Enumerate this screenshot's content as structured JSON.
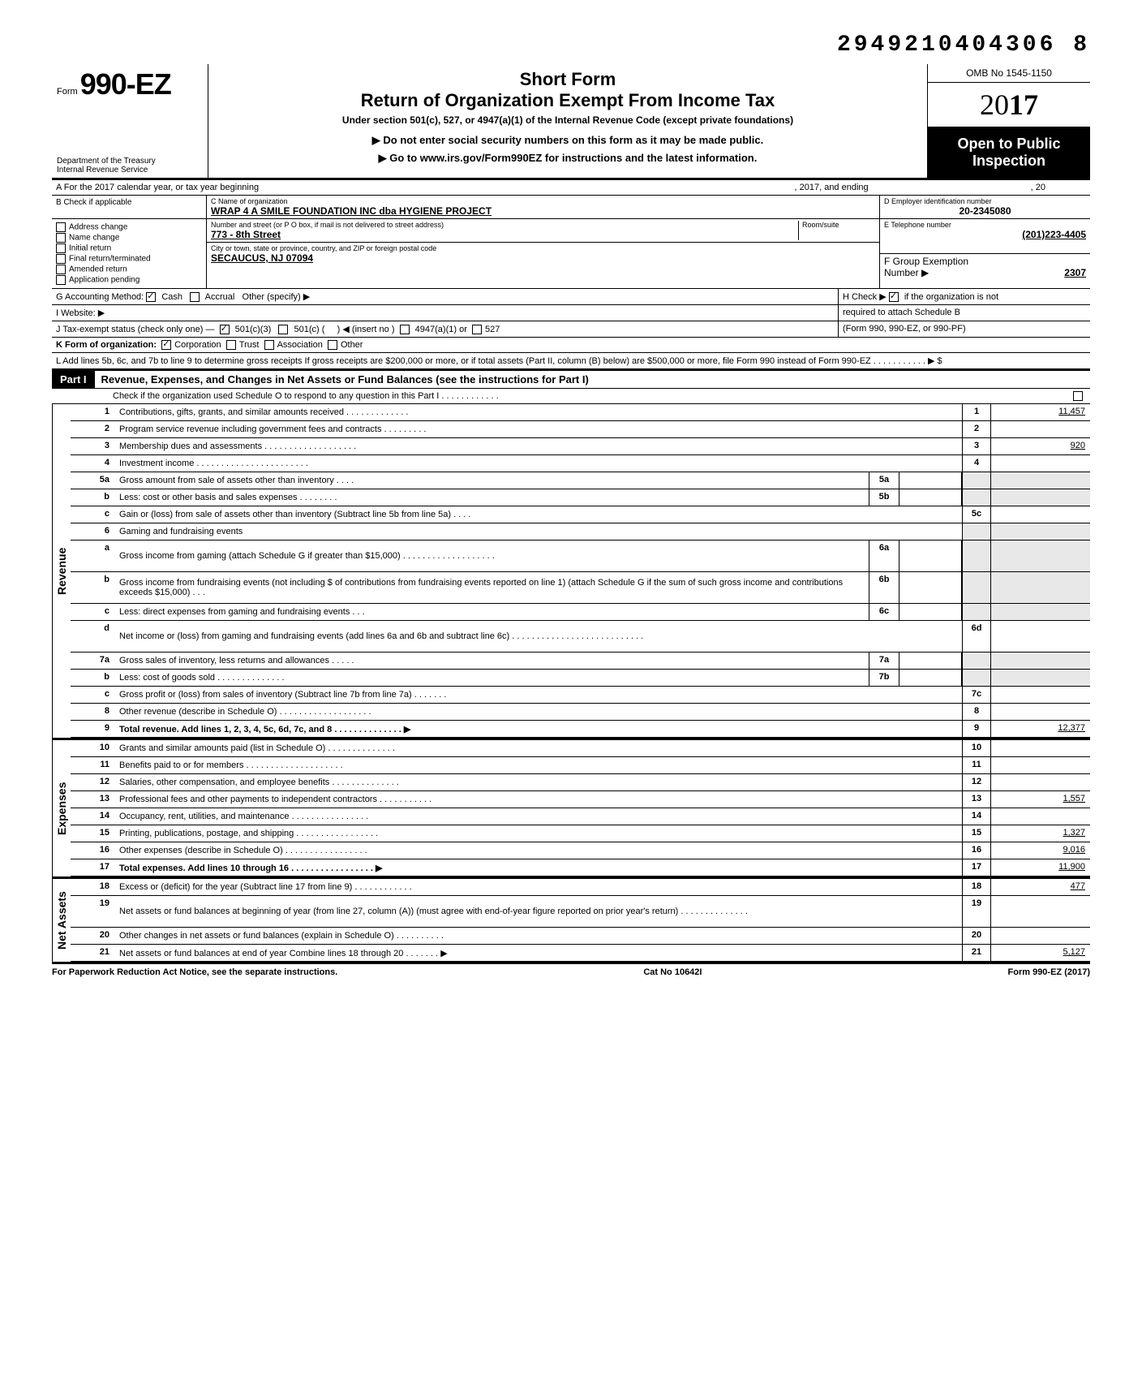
{
  "dln": "2949210404306  8",
  "omb": "OMB No 1545-1150",
  "form": {
    "prefix": "Form",
    "number": "990-EZ"
  },
  "year_display": {
    "static": "20",
    "bold": "17"
  },
  "dept": "Department of the Treasury\nInternal Revenue Service",
  "titles": {
    "short": "Short Form",
    "main": "Return of Organization Exempt From Income Tax",
    "under": "Under section 501(c), 527, or 4947(a)(1) of the Internal Revenue Code (except private foundations)",
    "warn": "Do not enter social security numbers on this form as it may be made public.",
    "goto": "Go to www.irs.gov/Form990EZ for instructions and the latest information.",
    "open1": "Open to Public",
    "open2": "Inspection"
  },
  "period": {
    "a_label": "A For the 2017 calendar year, or tax year beginning",
    "a_mid": ", 2017, and ending",
    "a_end": ", 20"
  },
  "section_b": {
    "label": "B  Check if applicable",
    "items": [
      "Address change",
      "Name change",
      "Initial return",
      "Final return/terminated",
      "Amended return",
      "Application pending"
    ]
  },
  "section_c": {
    "name_label": "C Name of organization",
    "name": "WRAP 4 A SMILE FOUNDATION INC  dba HYGIENE PROJECT",
    "addr_label": "Number and street (or P O  box, if mail is not delivered to street address)",
    "addr": "773 - 8th Street",
    "room_label": "Room/suite",
    "city_label": "City or town, state or province, country, and ZIP or foreign postal code",
    "city": "SECAUCUS, NJ 07094"
  },
  "section_d": {
    "label": "D Employer identification number",
    "value": "20-2345080"
  },
  "section_e": {
    "label": "E Telephone number",
    "value": "(201)223-4405"
  },
  "section_f": {
    "label": "F Group Exemption",
    "label2": "Number ▶",
    "value": "2307"
  },
  "section_g": {
    "label": "G  Accounting Method:",
    "cash": "Cash",
    "accrual": "Accrual",
    "other": "Other (specify) ▶"
  },
  "section_h": {
    "label": "H Check ▶",
    "text": "if the organization is not",
    "text2": "required to attach Schedule B",
    "text3": "(Form 990, 990-EZ, or 990-PF)"
  },
  "section_i": {
    "label": "I  Website: ▶"
  },
  "section_j": {
    "label": "J  Tax-exempt status (check only one) —",
    "opts": [
      "501(c)(3)",
      "501(c) (",
      ")  ◀ (insert no )",
      "4947(a)(1) or",
      "527"
    ]
  },
  "section_k": {
    "label": "K  Form of organization:",
    "opts": [
      "Corporation",
      "Trust",
      "Association",
      "Other"
    ]
  },
  "section_l": "L  Add lines 5b, 6c, and 7b to line 9 to determine gross receipts  If gross receipts are $200,000 or more, or if total assets (Part II, column (B) below) are $500,000 or more, file Form 990 instead of Form 990-EZ   .    .    .    .    .    .    .    .    .    .    .    ▶    $",
  "part1": {
    "label": "Part I",
    "title": "Revenue, Expenses, and Changes in Net Assets or Fund Balances (see the instructions for Part I)",
    "check": "Check if the organization used Schedule O to respond to any question in this Part I  .   .   .   .   .   .   .   .   .   .   .   ."
  },
  "verticals": {
    "revenue": "Revenue",
    "expenses": "Expenses",
    "netassets": "Net Assets"
  },
  "lines": [
    {
      "no": "1",
      "desc": "Contributions, gifts, grants, and similar amounts received .   .   .   .   .   .   .   .   .   .   .   .   .",
      "amt_no": "1",
      "amt": "11,457"
    },
    {
      "no": "2",
      "desc": "Program service revenue including government fees and contracts    .   .   .   .   .   .   .   .   .",
      "amt_no": "2",
      "amt": ""
    },
    {
      "no": "3",
      "desc": "Membership dues and assessments .   .   .   .   .   .   .   .   .   .   .   .   .   .   .   .   .   .   .",
      "amt_no": "3",
      "amt": "920"
    },
    {
      "no": "4",
      "desc": "Investment income   .   .   .   .   .   .   .   .   .   .   .   .   .   .   .   .   .   .   .   .   .   .   .",
      "amt_no": "4",
      "amt": ""
    },
    {
      "no": "5a",
      "desc": "Gross amount from sale of assets other than inventory    .   .   .   .",
      "sub_lbl": "5a",
      "sub_amt": ""
    },
    {
      "no": "b",
      "desc": "Less: cost or other basis and sales expenses .   .   .   .   .   .   .   .",
      "sub_lbl": "5b",
      "sub_amt": ""
    },
    {
      "no": "c",
      "desc": "Gain or (loss) from sale of assets other than inventory (Subtract line 5b from line 5a)  .   .   .   .",
      "amt_no": "5c",
      "amt": ""
    },
    {
      "no": "6",
      "desc": "Gaming and fundraising events",
      "shade_amt": true
    },
    {
      "no": "a",
      "desc": "Gross income from gaming (attach Schedule G if greater than $15,000) .   .   .   .   .   .   .   .   .   .   .   .   .   .   .   .   .   .   .",
      "sub_lbl": "6a",
      "sub_amt": "",
      "tall": true,
      "shade_amt": true
    },
    {
      "no": "b",
      "desc": "Gross income from fundraising events (not including  $                              of contributions from fundraising events reported on line 1) (attach Schedule G if the sum of such gross income and contributions exceeds $15,000)  .   .   .",
      "sub_lbl": "6b",
      "sub_amt": "",
      "tall": true,
      "shade_amt": true
    },
    {
      "no": "c",
      "desc": "Less: direct expenses from gaming and fundraising events    .   .   .",
      "sub_lbl": "6c",
      "sub_amt": "",
      "shade_amt": true
    },
    {
      "no": "d",
      "desc": "Net income or (loss) from gaming and fundraising events (add lines 6a and 6b and subtract line 6c)   .   .   .   .   .   .   .   .   .   .   .   .   .   .   .   .   .   .   .   .   .   .   .   .   .   .   .",
      "amt_no": "6d",
      "amt": "",
      "tall": true
    },
    {
      "no": "7a",
      "desc": "Gross sales of inventory, less returns and allowances   .   .   .   .   .",
      "sub_lbl": "7a",
      "sub_amt": ""
    },
    {
      "no": "b",
      "desc": "Less: cost of goods sold    .   .   .   .   .   .   .   .   .   .   .   .   .   .",
      "sub_lbl": "7b",
      "sub_amt": ""
    },
    {
      "no": "c",
      "desc": "Gross profit or (loss) from sales of inventory (Subtract line 7b from line 7a)   .   .   .   .   .   .   .",
      "amt_no": "7c",
      "amt": ""
    },
    {
      "no": "8",
      "desc": "Other revenue (describe in Schedule O) .   .   .   .   .   .   .   .   .   .   .   .   .   .   .   .   .   .   .",
      "amt_no": "8",
      "amt": ""
    },
    {
      "no": "9",
      "desc": "Total revenue. Add lines 1, 2, 3, 4, 5c, 6d, 7c, and 8   .   .   .   .   .   .   .   .   .   .   .   .   .   . ▶",
      "amt_no": "9",
      "amt": "12,377",
      "bold": true
    }
  ],
  "expense_lines": [
    {
      "no": "10",
      "desc": "Grants and similar amounts paid (list in Schedule O)   .   .   .   .   .   .   .   .   .   .   .   .   .   .",
      "amt_no": "10",
      "amt": ""
    },
    {
      "no": "11",
      "desc": "Benefits paid to or for members   .   .   .   .   .   .   .   .   .   .   .   .   .   .   .   .   .   .   .   .",
      "amt_no": "11",
      "amt": ""
    },
    {
      "no": "12",
      "desc": "Salaries, other compensation, and employee benefits   .   .   .   .   .   .   .   .   .   .   .   .   .   .",
      "amt_no": "12",
      "amt": ""
    },
    {
      "no": "13",
      "desc": "Professional fees and other payments to independent contractors .   .   .   .   .   .   .   .   .   .   .",
      "amt_no": "13",
      "amt": "1,557"
    },
    {
      "no": "14",
      "desc": "Occupancy, rent, utilities, and maintenance     .   .   .   .   .   .   .   .   .   .   .   .   .   .   .   .",
      "amt_no": "14",
      "amt": ""
    },
    {
      "no": "15",
      "desc": "Printing, publications, postage, and shipping .   .   .   .   .   .   .   .   .   .   .   .   .   .   .   .   .",
      "amt_no": "15",
      "amt": "1,327"
    },
    {
      "no": "16",
      "desc": "Other expenses (describe in Schedule O)   .   .   .   .   .   .   .   .   .   .   .   .   .   .   .   .   .",
      "amt_no": "16",
      "amt": "9,016"
    },
    {
      "no": "17",
      "desc": "Total expenses. Add lines 10 through 16 .   .   .   .   .   .   .   .   .   .   .   .   .   .   .   .   . ▶",
      "amt_no": "17",
      "amt": "11,900",
      "bold": true
    }
  ],
  "netasset_lines": [
    {
      "no": "18",
      "desc": "Excess or (deficit) for the year (Subtract line 17 from line 9)   .   .   .   .   .   .   .   .   .   .   .   .",
      "amt_no": "18",
      "amt": "477"
    },
    {
      "no": "19",
      "desc": "Net assets or fund balances at beginning of year (from line 27, column (A)) (must agree with end-of-year figure reported on prior year's return)    .   .   .   .   .   .   .   .   .   .   .   .   .   .",
      "amt_no": "19",
      "amt": "",
      "tall": true
    },
    {
      "no": "20",
      "desc": "Other changes in net assets or fund balances (explain in Schedule O) .   .   .   .   .   .   .   .   .   .",
      "amt_no": "20",
      "amt": ""
    },
    {
      "no": "21",
      "desc": "Net assets or fund balances at end of year  Combine lines 18 through 20    .   .   .   .   .   .   . ▶",
      "amt_no": "21",
      "amt": "5,127"
    }
  ],
  "footer": {
    "left": "For Paperwork Reduction Act Notice, see the separate instructions.",
    "mid": "Cat No  10642I",
    "right": "Form 990-EZ (2017)"
  }
}
